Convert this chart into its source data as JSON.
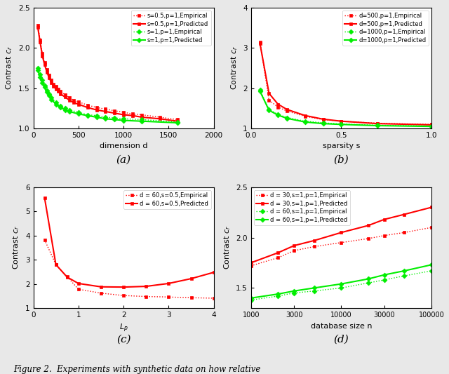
{
  "panel_a": {
    "title": "(a)",
    "xlabel": "dimension d",
    "ylabel": "Contrast $c_r$",
    "xlim": [
      0,
      2000
    ],
    "ylim": [
      1.0,
      2.5
    ],
    "yticks": [
      1.0,
      1.5,
      2.0,
      2.5
    ],
    "xticks": [
      0,
      500,
      1000,
      1500,
      2000
    ],
    "series": [
      {
        "label": "s=0.5,p=1,Empirical",
        "color": "#ff0000",
        "linestyle": "dotted",
        "marker": "s",
        "markersize": 3.5,
        "x": [
          50,
          75,
          100,
          125,
          150,
          175,
          200,
          225,
          250,
          275,
          300,
          350,
          400,
          450,
          500,
          600,
          700,
          800,
          900,
          1000,
          1100,
          1200,
          1400,
          1600
        ],
        "y": [
          2.28,
          2.1,
          1.93,
          1.82,
          1.73,
          1.66,
          1.6,
          1.55,
          1.52,
          1.49,
          1.46,
          1.42,
          1.38,
          1.35,
          1.33,
          1.29,
          1.26,
          1.24,
          1.22,
          1.2,
          1.18,
          1.17,
          1.14,
          1.11
        ]
      },
      {
        "label": "s=0.5,p=1,Predicted",
        "color": "#ff0000",
        "linestyle": "solid",
        "marker": "s",
        "markersize": 3.5,
        "x": [
          50,
          75,
          100,
          125,
          150,
          175,
          200,
          225,
          250,
          275,
          300,
          350,
          400,
          450,
          500,
          600,
          700,
          800,
          900,
          1000,
          1100,
          1200,
          1400,
          1600
        ],
        "y": [
          2.25,
          2.07,
          1.9,
          1.79,
          1.7,
          1.63,
          1.57,
          1.52,
          1.49,
          1.46,
          1.43,
          1.39,
          1.35,
          1.32,
          1.3,
          1.26,
          1.23,
          1.21,
          1.19,
          1.17,
          1.16,
          1.14,
          1.12,
          1.09
        ]
      },
      {
        "label": "s=1,p=1,Empirical",
        "color": "#00ee00",
        "linestyle": "dotted",
        "marker": "D",
        "markersize": 3.5,
        "x": [
          50,
          75,
          100,
          125,
          150,
          175,
          200,
          250,
          300,
          350,
          400,
          500,
          600,
          700,
          800,
          900,
          1000,
          1200,
          1600
        ],
        "y": [
          1.75,
          1.67,
          1.6,
          1.53,
          1.47,
          1.43,
          1.38,
          1.32,
          1.28,
          1.25,
          1.23,
          1.2,
          1.17,
          1.16,
          1.14,
          1.13,
          1.12,
          1.11,
          1.08
        ]
      },
      {
        "label": "s=1,p=1,Predicted",
        "color": "#00ee00",
        "linestyle": "solid",
        "marker": "D",
        "markersize": 3.5,
        "x": [
          50,
          75,
          100,
          125,
          150,
          175,
          200,
          250,
          300,
          350,
          400,
          500,
          600,
          700,
          800,
          900,
          1000,
          1200,
          1600
        ],
        "y": [
          1.72,
          1.64,
          1.57,
          1.51,
          1.45,
          1.41,
          1.36,
          1.3,
          1.26,
          1.23,
          1.21,
          1.18,
          1.16,
          1.14,
          1.12,
          1.11,
          1.1,
          1.09,
          1.07
        ]
      }
    ]
  },
  "panel_b": {
    "title": "(b)",
    "xlabel": "sparsity s",
    "ylabel": "Contrast $c_r$",
    "xlim": [
      0,
      1.0
    ],
    "ylim": [
      1.0,
      4.0
    ],
    "yticks": [
      1.0,
      2.0,
      3.0,
      4.0
    ],
    "xticks": [
      0,
      0.5,
      1.0
    ],
    "series": [
      {
        "label": "d=500,p=1,Empirical",
        "color": "#ff0000",
        "linestyle": "dotted",
        "marker": "s",
        "markersize": 3.5,
        "x": [
          0.05,
          0.1,
          0.15,
          0.2,
          0.3,
          0.4,
          0.5,
          0.7,
          1.0
        ],
        "y": [
          3.15,
          1.7,
          1.53,
          1.43,
          1.3,
          1.22,
          1.18,
          1.13,
          1.1
        ]
      },
      {
        "label": "d=500,p=1,Predicted",
        "color": "#ff0000",
        "linestyle": "solid",
        "marker": "s",
        "markersize": 3.5,
        "x": [
          0.05,
          0.1,
          0.15,
          0.2,
          0.3,
          0.4,
          0.5,
          0.7,
          1.0
        ],
        "y": [
          3.1,
          1.87,
          1.6,
          1.47,
          1.32,
          1.23,
          1.18,
          1.12,
          1.09
        ]
      },
      {
        "label": "d=1000,p=1,Empirical",
        "color": "#00ee00",
        "linestyle": "dotted",
        "marker": "D",
        "markersize": 3.5,
        "x": [
          0.05,
          0.1,
          0.15,
          0.2,
          0.3,
          0.4,
          0.5,
          0.7,
          1.0
        ],
        "y": [
          1.95,
          1.47,
          1.35,
          1.27,
          1.18,
          1.14,
          1.11,
          1.08,
          1.06
        ]
      },
      {
        "label": "d=1000,p=1,Predicted",
        "color": "#00ee00",
        "linestyle": "solid",
        "marker": "D",
        "markersize": 3.5,
        "x": [
          0.05,
          0.1,
          0.15,
          0.2,
          0.3,
          0.4,
          0.5,
          0.7,
          1.0
        ],
        "y": [
          1.92,
          1.45,
          1.33,
          1.25,
          1.16,
          1.12,
          1.1,
          1.07,
          1.05
        ]
      }
    ]
  },
  "panel_c": {
    "title": "(c)",
    "xlabel": "$L_p$",
    "ylabel": "Contrast $c_r$",
    "xlim": [
      0,
      4
    ],
    "ylim": [
      1.0,
      6.0
    ],
    "yticks": [
      1.0,
      2.0,
      3.0,
      4.0,
      5.0,
      6.0
    ],
    "xticks": [
      0,
      1,
      2,
      3,
      4
    ],
    "series": [
      {
        "label": "d = 60,s=0.5,Empirical",
        "color": "#ff0000",
        "linestyle": "dotted",
        "marker": "s",
        "markersize": 3.5,
        "x": [
          0.25,
          0.5,
          0.75,
          1.0,
          1.5,
          2.0,
          2.5,
          3.0,
          3.5,
          4.0
        ],
        "y": [
          3.82,
          2.8,
          2.3,
          1.78,
          1.62,
          1.52,
          1.48,
          1.46,
          1.43,
          1.41
        ]
      },
      {
        "label": "d = 60,s=0.5,Predicted",
        "color": "#ff0000",
        "linestyle": "solid",
        "marker": "s",
        "markersize": 3.5,
        "x": [
          0.25,
          0.5,
          0.75,
          1.0,
          1.5,
          2.0,
          2.5,
          3.0,
          3.5,
          4.0
        ],
        "y": [
          5.55,
          2.8,
          2.28,
          2.02,
          1.88,
          1.87,
          1.9,
          2.02,
          2.22,
          2.48
        ]
      }
    ]
  },
  "panel_d": {
    "title": "(d)",
    "xlabel": "database size n",
    "ylabel": "Contrast $c_r$",
    "xlim": [
      1000,
      100000
    ],
    "ylim": [
      1.3,
      2.5
    ],
    "yticks": [
      1.5,
      2.0,
      2.5
    ],
    "xticks": [
      1000,
      3000,
      10000,
      30000,
      100000
    ],
    "xtick_labels": [
      "1000",
      "3000",
      "10000",
      "30000",
      "100000"
    ],
    "series": [
      {
        "label": "d = 30,s=1,p=1,Empirical",
        "color": "#ff0000",
        "linestyle": "dotted",
        "marker": "s",
        "markersize": 3.5,
        "x": [
          1000,
          2000,
          3000,
          5000,
          10000,
          20000,
          30000,
          50000,
          100000
        ],
        "y": [
          1.72,
          1.8,
          1.87,
          1.91,
          1.95,
          1.99,
          2.02,
          2.05,
          2.1
        ]
      },
      {
        "label": "d = 30,s=1,p=1,Predicted",
        "color": "#ff0000",
        "linestyle": "solid",
        "marker": "s",
        "markersize": 3.5,
        "x": [
          1000,
          2000,
          3000,
          5000,
          10000,
          20000,
          30000,
          50000,
          100000
        ],
        "y": [
          1.75,
          1.85,
          1.92,
          1.97,
          2.05,
          2.12,
          2.18,
          2.23,
          2.3
        ]
      },
      {
        "label": "d = 60,s=1,p=1,Empirical",
        "color": "#00ee00",
        "linestyle": "dotted",
        "marker": "D",
        "markersize": 3.5,
        "x": [
          1000,
          2000,
          3000,
          5000,
          10000,
          20000,
          30000,
          50000,
          100000
        ],
        "y": [
          1.38,
          1.42,
          1.45,
          1.47,
          1.5,
          1.55,
          1.58,
          1.62,
          1.67
        ]
      },
      {
        "label": "d = 60,s=1,p=1,Predicted",
        "color": "#00ee00",
        "linestyle": "solid",
        "marker": "D",
        "markersize": 3.5,
        "x": [
          1000,
          2000,
          3000,
          5000,
          10000,
          20000,
          30000,
          50000,
          100000
        ],
        "y": [
          1.4,
          1.44,
          1.47,
          1.5,
          1.54,
          1.59,
          1.63,
          1.67,
          1.73
        ]
      }
    ]
  },
  "figure_caption": "Figure 2.  Experiments with synthetic data on how relative",
  "bg_color": "#e8e8e8"
}
